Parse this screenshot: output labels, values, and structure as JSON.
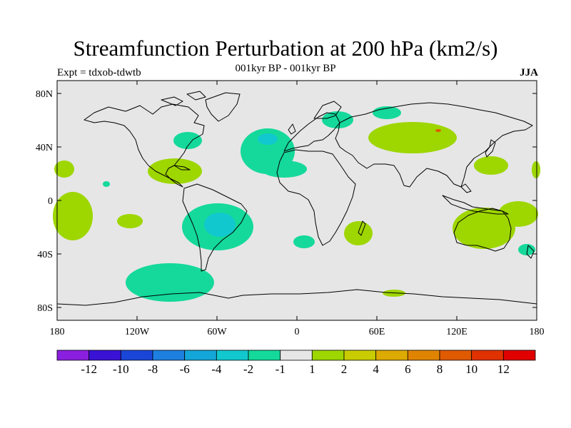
{
  "title": "Streamfunction Perturbation at 200 hPa (km2/s)",
  "subtitle_left": "Expt = tdxob-tdwtb",
  "subtitle_center": "001kyr BP - 001kyr BP",
  "subtitle_right": "JJA",
  "lat_ticks": [
    "80N",
    "40N",
    "0",
    "40S",
    "80S"
  ],
  "lon_ticks": [
    "180",
    "120W",
    "60W",
    "0",
    "60E",
    "120E",
    "180"
  ],
  "colorbar": {
    "colors": [
      "#8a1fe0",
      "#3a12d6",
      "#1a46d8",
      "#1d7fe0",
      "#13a6d8",
      "#12c8cf",
      "#14d99a",
      "#e6e6e6",
      "#9ed600",
      "#c8cc00",
      "#dcaa00",
      "#e08400",
      "#e05a00",
      "#e03200",
      "#e00000"
    ],
    "labels": [
      "-12",
      "-10",
      "-8",
      "-6",
      "-4",
      "-2",
      "-1",
      "1",
      "2",
      "4",
      "6",
      "8",
      "10",
      "12"
    ]
  },
  "colors": {
    "background": "#e6e6e6",
    "negative_weak": "#14d99a",
    "negative_mid": "#12c8cf",
    "positive_weak": "#9ed600",
    "coastline": "#000000"
  }
}
